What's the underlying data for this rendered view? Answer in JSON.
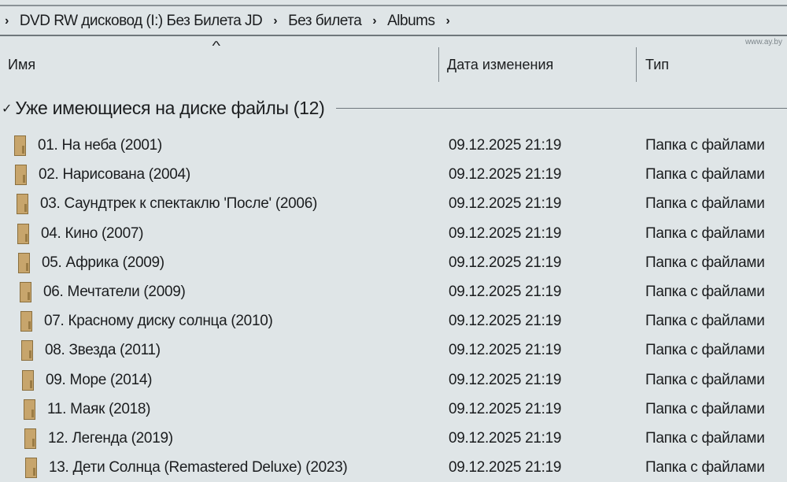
{
  "breadcrumb": {
    "items": [
      "DVD RW дисковод (I:) Без Билета JD",
      "Без билета",
      "Albums"
    ]
  },
  "columns": {
    "name": "Имя",
    "date": "Дата изменения",
    "type": "Тип",
    "sort": "ascending by name"
  },
  "group": {
    "label": "Уже имеющиеся на диске файлы (12)"
  },
  "rows": [
    {
      "name": "01. На неба (2001)",
      "date": "09.12.2025 21:19",
      "type": "Папка с файлами"
    },
    {
      "name": "02. Нарисована (2004)",
      "date": "09.12.2025 21:19",
      "type": "Папка с файлами"
    },
    {
      "name": "03. Саундтрек к спектаклю 'После' (2006)",
      "date": "09.12.2025 21:19",
      "type": "Папка с файлами"
    },
    {
      "name": "04. Кино (2007)",
      "date": "09.12.2025 21:19",
      "type": "Папка с файлами"
    },
    {
      "name": "05. Африка (2009)",
      "date": "09.12.2025 21:19",
      "type": "Папка с файлами"
    },
    {
      "name": "06. Мечтатели (2009)",
      "date": "09.12.2025 21:19",
      "type": "Папка с файлами"
    },
    {
      "name": "07. Красному диску солнца (2010)",
      "date": "09.12.2025 21:19",
      "type": "Папка с файлами"
    },
    {
      "name": "08. Звезда (2011)",
      "date": "09.12.2025 21:19",
      "type": "Папка с файлами"
    },
    {
      "name": "09. Море (2014)",
      "date": "09.12.2025 21:19",
      "type": "Папка с файлами"
    },
    {
      "name": "11. Маяк (2018)",
      "date": "09.12.2025 21:19",
      "type": "Папка с файлами"
    },
    {
      "name": "12. Легенда (2019)",
      "date": "09.12.2025 21:19",
      "type": "Папка с файлами"
    },
    {
      "name": "13. Дети Солнца (Remastered Deluxe) (2023)",
      "date": "09.12.2025 21:19",
      "type": "Папка с файлами"
    }
  ],
  "watermark": "www.ay.by",
  "colors": {
    "folder": "#c7a56c",
    "background": "#dfe5e7"
  }
}
